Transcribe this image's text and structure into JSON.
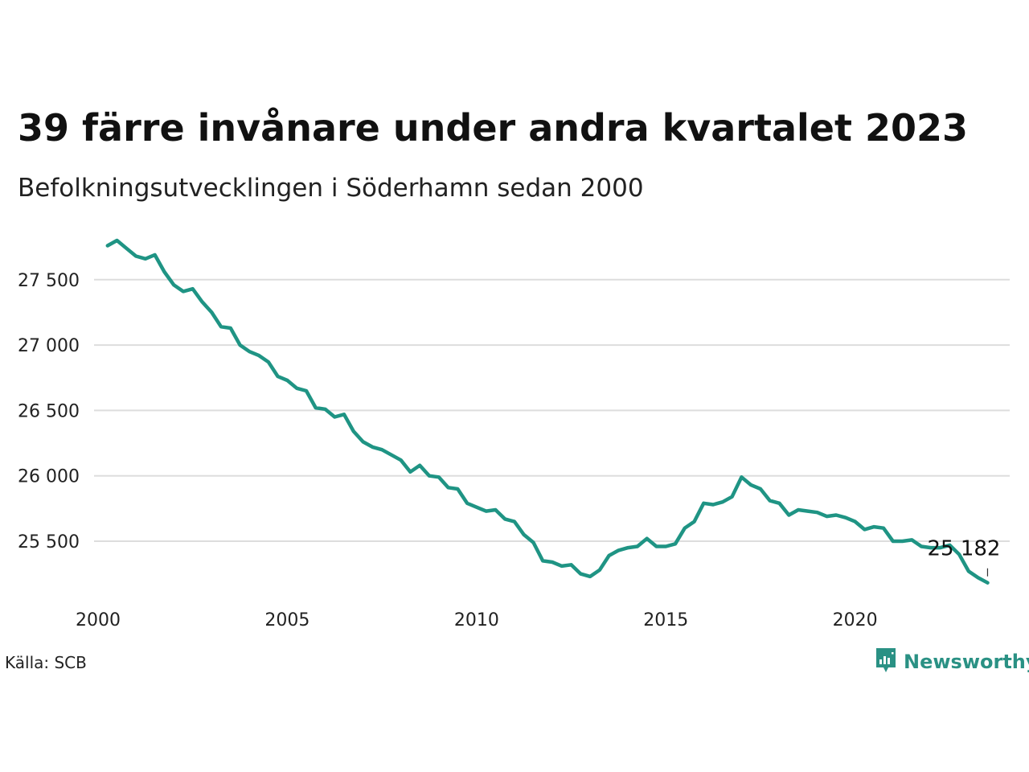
{
  "header": {
    "title": "39 färre invånare under andra kvartalet 2023",
    "subtitle": "Befolkningsutvecklingen i Söderhamn sedan 2000"
  },
  "footer": {
    "source": "Källa: SCB",
    "brand": "Newsworthy",
    "brand_icon": "newsworthy-logo-icon"
  },
  "colors": {
    "line": "#1f9484",
    "grid": "#dddddd",
    "brand": "#2a9184"
  },
  "chart_data": {
    "type": "line",
    "title": "39 färre invånare under andra kvartalet 2023",
    "subtitle": "Befolkningsutvecklingen i Söderhamn sedan 2000",
    "xlabel": "",
    "ylabel": "",
    "xlim": [
      2000,
      2023.5
    ],
    "ylim": [
      25150,
      27850
    ],
    "x_ticks": [
      2000,
      2005,
      2010,
      2015,
      2020
    ],
    "x_tick_labels": [
      "2000",
      "2005",
      "2010",
      "2015",
      "2020"
    ],
    "y_ticks": [
      25500,
      26000,
      26500,
      27000,
      27500
    ],
    "y_tick_labels": [
      "25 500",
      "26 000",
      "26 500",
      "27 000",
      "27 500"
    ],
    "grid": "horizontal",
    "end_label": "25 182",
    "series": [
      {
        "x": [
          2000.25,
          2000.5,
          2000.75,
          2001.0,
          2001.25,
          2001.5,
          2001.75,
          2002.0,
          2002.25,
          2002.5,
          2002.75,
          2003.0,
          2003.25,
          2003.5,
          2003.75,
          2004.0,
          2004.25,
          2004.5,
          2004.75,
          2005.0,
          2005.25,
          2005.5,
          2005.75,
          2006.0,
          2006.25,
          2006.5,
          2006.75,
          2007.0,
          2007.25,
          2007.5,
          2007.75,
          2008.0,
          2008.25,
          2008.5,
          2008.75,
          2009.0,
          2009.25,
          2009.5,
          2009.75,
          2010.0,
          2010.25,
          2010.5,
          2010.75,
          2011.0,
          2011.25,
          2011.5,
          2011.75,
          2012.0,
          2012.25,
          2012.5,
          2012.75,
          2013.0,
          2013.25,
          2013.5,
          2013.75,
          2014.0,
          2014.25,
          2014.5,
          2014.75,
          2015.0,
          2015.25,
          2015.5,
          2015.75,
          2016.0,
          2016.25,
          2016.5,
          2016.75,
          2017.0,
          2017.25,
          2017.5,
          2017.75,
          2018.0,
          2018.25,
          2018.5,
          2018.75,
          2019.0,
          2019.25,
          2019.5,
          2019.75,
          2020.0,
          2020.25,
          2020.5,
          2020.75,
          2021.0,
          2021.25,
          2021.5,
          2021.75,
          2022.0,
          2022.25,
          2022.5,
          2022.75,
          2023.0,
          2023.25,
          2023.5
        ],
        "y": [
          27760,
          27800,
          27740,
          27680,
          27660,
          27690,
          27560,
          27460,
          27410,
          27430,
          27330,
          27250,
          27140,
          27130,
          27000,
          26950,
          26920,
          26870,
          26760,
          26730,
          26670,
          26650,
          26520,
          26510,
          26450,
          26470,
          26340,
          26260,
          26220,
          26200,
          26160,
          26120,
          26030,
          26080,
          26000,
          25990,
          25910,
          25900,
          25790,
          25760,
          25730,
          25740,
          25670,
          25650,
          25550,
          25490,
          25350,
          25340,
          25310,
          25320,
          25250,
          25230,
          25280,
          25390,
          25430,
          25450,
          25460,
          25520,
          25460,
          25460,
          25480,
          25600,
          25650,
          25790,
          25780,
          25800,
          25840,
          25990,
          25930,
          25900,
          25810,
          25790,
          25700,
          25740,
          25730,
          25720,
          25690,
          25700,
          25680,
          25650,
          25590,
          25610,
          25600,
          25500,
          25500,
          25510,
          25460,
          25450,
          25450,
          25470,
          25400,
          25270,
          25221,
          25182
        ]
      }
    ]
  }
}
